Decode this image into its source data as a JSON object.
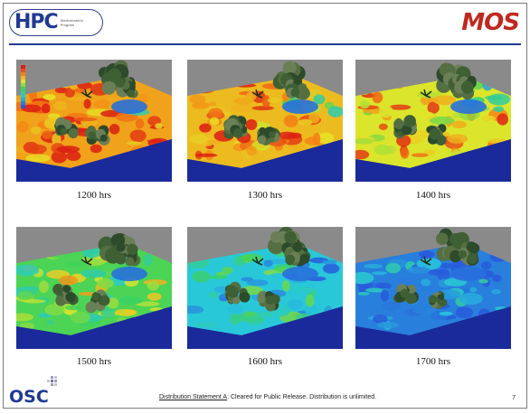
{
  "header": {
    "hpc_logo_text": "HPC",
    "hpc_logo_subtext": "Modernization Program",
    "mos_logo_text": "MOS"
  },
  "panels": [
    {
      "label": "1200 hrs",
      "heat": 0.9
    },
    {
      "label": "1300 hrs",
      "heat": 0.85
    },
    {
      "label": "1400 hrs",
      "heat": 0.75
    },
    {
      "label": "1500 hrs",
      "heat": 0.55
    },
    {
      "label": "1600 hrs",
      "heat": 0.3
    },
    {
      "label": "1700 hrs",
      "heat": 0.1
    }
  ],
  "footer": {
    "statement_label": "Distribution Statement A",
    "statement_text": ": Cleared for Public Release. Distribution is unlimited.",
    "osc_logo_text": "OSC",
    "page_number": "7"
  },
  "colors": {
    "brand_blue": "#1f3a93",
    "mos_red": "#c0281f",
    "water": "#1a2a9a",
    "background_gray": "#8a8a8a"
  }
}
